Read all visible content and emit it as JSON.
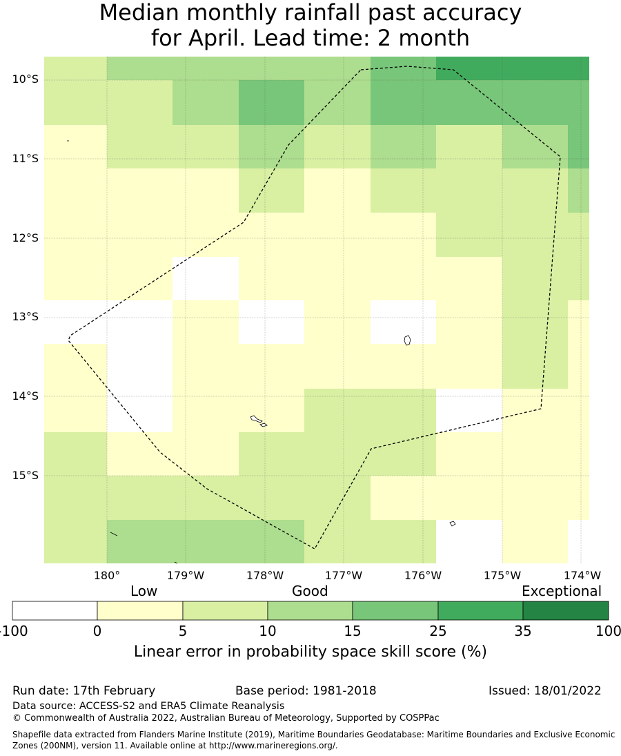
{
  "title": {
    "line1": "Median monthly rainfall past accuracy",
    "line2": "for April. Lead time: 2 month"
  },
  "map": {
    "lat_ticks": [
      "10°S",
      "11°S",
      "12°S",
      "13°S",
      "14°S",
      "15°S"
    ],
    "lon_ticks": [
      "180°",
      "179°W",
      "178°W",
      "177°W",
      "176°W",
      "175°W",
      "174°W"
    ]
  },
  "legend": {
    "categories": [
      "Low",
      "Good",
      "Exceptional"
    ],
    "ticks": [
      "-100",
      "0",
      "5",
      "10",
      "15",
      "25",
      "35",
      "100"
    ],
    "colors": [
      "#ffffff",
      "#ffffcc",
      "#d9f0a3",
      "#addd8e",
      "#78c679",
      "#41ab5d",
      "#238443"
    ],
    "title": "Linear error in probability space skill score (%)"
  },
  "footer": {
    "run_date": "Run date: 17th February",
    "base_period": "Base period: 1981-2018",
    "issued": "Issued: 18/01/2022",
    "data_source": "Data source: ACCESS-S2 and ERA5 Climate Reanalysis",
    "copyright": "© Commonwealth of Australia 2022, Australian Bureau of Meteorology, Supported by COSPPac",
    "shapefile_line1": "Shapefile data extracted from Flanders Marine Institute (2019), Maritime Boundaries Geodatabase: Maritime Boundaries and Exclusive Economic",
    "shapefile_line2": "Zones (200NM), version 11. Available online at http://www.marineregions.org/."
  },
  "grid": {
    "rows": [
      [
        2,
        3,
        3,
        3,
        3,
        4,
        5,
        5,
        5
      ],
      [
        2,
        2,
        3,
        4,
        3,
        4,
        4,
        4,
        4
      ],
      [
        1,
        2,
        2,
        3,
        2,
        3,
        2,
        3,
        4
      ],
      [
        1,
        1,
        1,
        2,
        1,
        2,
        2,
        2,
        3
      ],
      [
        1,
        1,
        1,
        1,
        1,
        1,
        2,
        2,
        2
      ],
      [
        1,
        1,
        0,
        1,
        1,
        1,
        1,
        2,
        2
      ],
      [
        0,
        0,
        1,
        0,
        1,
        0,
        1,
        2,
        1
      ],
      [
        1,
        0,
        1,
        1,
        1,
        1,
        1,
        2,
        1
      ],
      [
        1,
        0,
        1,
        1,
        2,
        2,
        0,
        1,
        1
      ],
      [
        2,
        1,
        1,
        2,
        2,
        2,
        1,
        1,
        1
      ],
      [
        2,
        2,
        2,
        2,
        2,
        1,
        1,
        1,
        1
      ],
      [
        2,
        3,
        3,
        3,
        2,
        2,
        0,
        1,
        0
      ]
    ]
  }
}
